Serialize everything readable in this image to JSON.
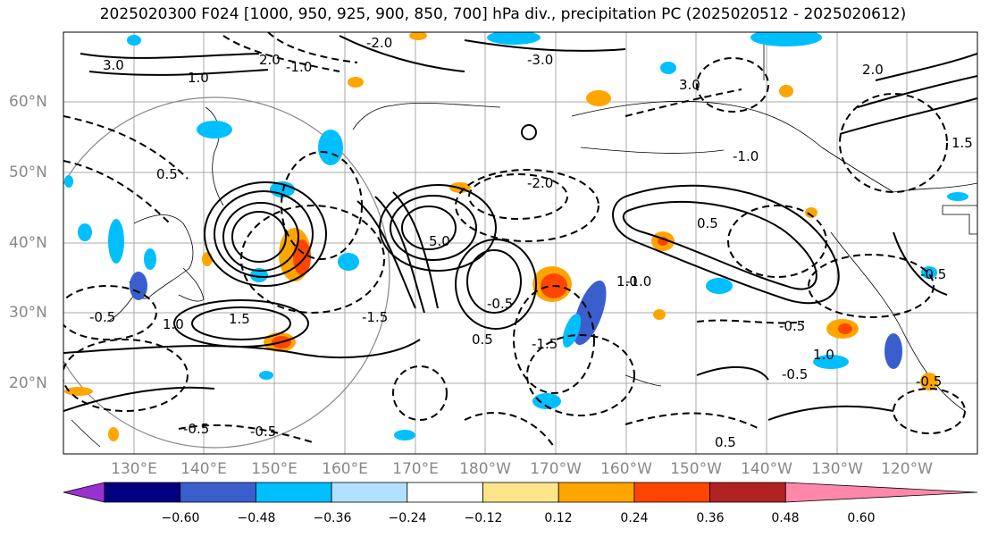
{
  "title": "2025020300 F024 [1000, 950, 925, 900, 850, 700] hPa div., precipitation PC (2025020512 - 2025020612)",
  "lat_labels": [
    "60°N",
    "50°N",
    "40°N",
    "30°N",
    "20°N"
  ],
  "lon_labels": [
    "130°E",
    "140°E",
    "150°E",
    "160°E",
    "170°E",
    "180°W",
    "170°W",
    "160°W",
    "150°W",
    "140°W",
    "130°W",
    "120°W"
  ],
  "colorbar": {
    "ticks": [
      "−0.60",
      "−0.48",
      "−0.36",
      "−0.24",
      "−0.12",
      "0.12",
      "0.24",
      "0.36",
      "0.48",
      "0.60"
    ],
    "colors": [
      "#9b30d0",
      "#000080",
      "#3a5fcd",
      "#00bfff",
      "#b0e2ff",
      "#ffffff",
      "#fde68a",
      "#ffa500",
      "#ff4500",
      "#b22222",
      "#ff88aa"
    ]
  },
  "contour_labels": [
    "-0.5",
    "1.0",
    "2.0",
    "3.0",
    "-1.0",
    "1.5",
    "-1.5",
    "0.5",
    "-2.0",
    "5.0",
    "-0.5",
    "-0.5",
    "1.0",
    "-0.5",
    "-0.5",
    "-0.5",
    "2.0",
    "3.0",
    "1.0",
    "-3.0",
    "1.0",
    "0.5",
    "0.5",
    "-0.5",
    "-2.0",
    "-1.0",
    "-1.0",
    "-0.5",
    "1.5",
    "0.5",
    "-1.5"
  ]
}
